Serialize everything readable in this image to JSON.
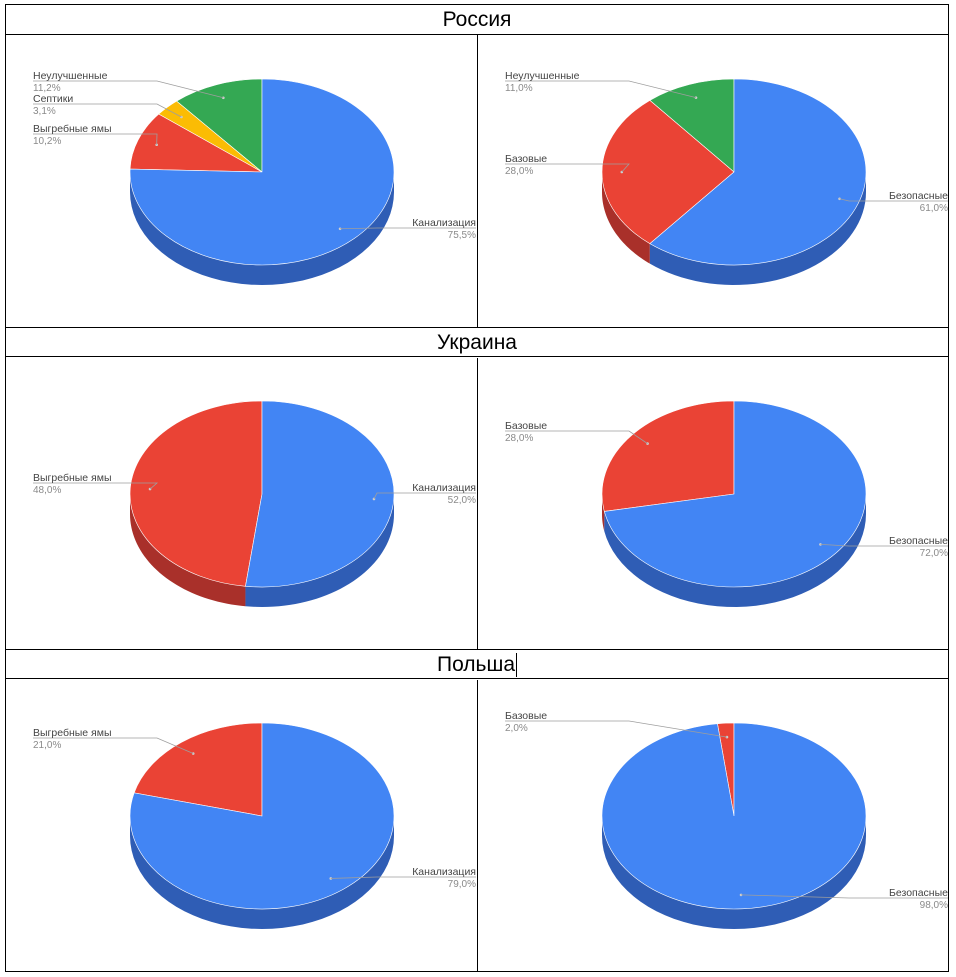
{
  "countries": [
    "Россия",
    "Украина",
    "Польша"
  ],
  "colors": {
    "blue": "#4285f4",
    "blue_side": "#2f5db5",
    "red": "#ea4335",
    "red_side": "#a9302a",
    "yellow": "#fbbc04",
    "yellow_side": "#b08a08",
    "green": "#34a853",
    "green_side": "#247a3b",
    "label": "#444444",
    "value": "#8a8a8a",
    "leader": "#9e9e9e"
  },
  "chart_data": [
    {
      "type": "pie",
      "country": "Россия",
      "slices": [
        {
          "label": "Неулучшенные",
          "value": 11.2,
          "value_text": "11,2%",
          "color": "green"
        },
        {
          "label": "Септики",
          "value": 3.1,
          "value_text": "3,1%",
          "color": "yellow"
        },
        {
          "label": "Выгребные ямы",
          "value": 10.2,
          "value_text": "10,2%",
          "color": "red"
        },
        {
          "label": "Канализация",
          "value": 75.5,
          "value_text": "75,5%",
          "color": "blue"
        }
      ]
    },
    {
      "type": "pie",
      "country": "Россия",
      "slices": [
        {
          "label": "Неулучшенные",
          "value": 11.0,
          "value_text": "11,0%",
          "color": "green"
        },
        {
          "label": "Базовые",
          "value": 28.0,
          "value_text": "28,0%",
          "color": "red"
        },
        {
          "label": "Безопасные",
          "value": 61.0,
          "value_text": "61,0%",
          "color": "blue"
        }
      ]
    },
    {
      "type": "pie",
      "country": "Украина",
      "slices": [
        {
          "label": "Выгребные ямы",
          "value": 48.0,
          "value_text": "48,0%",
          "color": "red"
        },
        {
          "label": "Канализация",
          "value": 52.0,
          "value_text": "52,0%",
          "color": "blue"
        }
      ]
    },
    {
      "type": "pie",
      "country": "Украина",
      "slices": [
        {
          "label": "Базовые",
          "value": 28.0,
          "value_text": "28,0%",
          "color": "red"
        },
        {
          "label": "Безопасные",
          "value": 72.0,
          "value_text": "72,0%",
          "color": "blue"
        }
      ]
    },
    {
      "type": "pie",
      "country": "Польша",
      "slices": [
        {
          "label": "Выгребные ямы",
          "value": 21.0,
          "value_text": "21,0%",
          "color": "red"
        },
        {
          "label": "Канализация",
          "value": 79.0,
          "value_text": "79,0%",
          "color": "blue"
        }
      ]
    },
    {
      "type": "pie",
      "country": "Польша",
      "slices": [
        {
          "label": "Базовые",
          "value": 2.0,
          "value_text": "2,0%",
          "color": "red"
        },
        {
          "label": "Безопасные",
          "value": 98.0,
          "value_text": "98,0%",
          "color": "blue"
        }
      ]
    }
  ]
}
